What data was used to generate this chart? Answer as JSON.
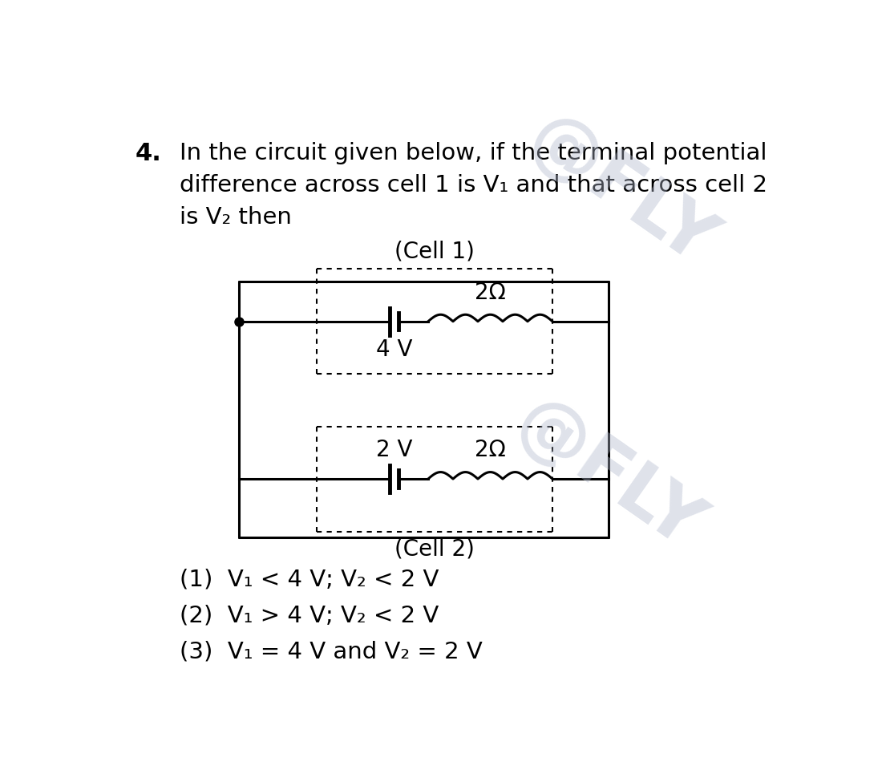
{
  "background_color": "#ffffff",
  "question_number": "4.",
  "question_text_line1": "In the circuit given below, if the terminal potential",
  "question_text_line2": "difference across cell 1 is V₁ and that across cell 2",
  "question_text_line3": "is V₂ then",
  "cell1_label": "(Cell 1)",
  "cell2_label": "(Cell 2)",
  "cell1_voltage": "4 V",
  "cell1_resistance": "2Ω",
  "cell2_voltage": "2 V",
  "cell2_resistance": "2Ω",
  "options": [
    "(1)  V₁ < 4 V; V₂ < 2 V",
    "(2)  V₁ > 4 V; V₂ < 2 V",
    "(3)  V₁ = 4 V and V₂ = 2 V"
  ],
  "text_color": "#000000",
  "circuit_color": "#000000",
  "dashed_box_color": "#000000",
  "watermark_color": "#b0b8cc",
  "fig_width": 11.1,
  "fig_height": 9.65,
  "dpi": 100
}
